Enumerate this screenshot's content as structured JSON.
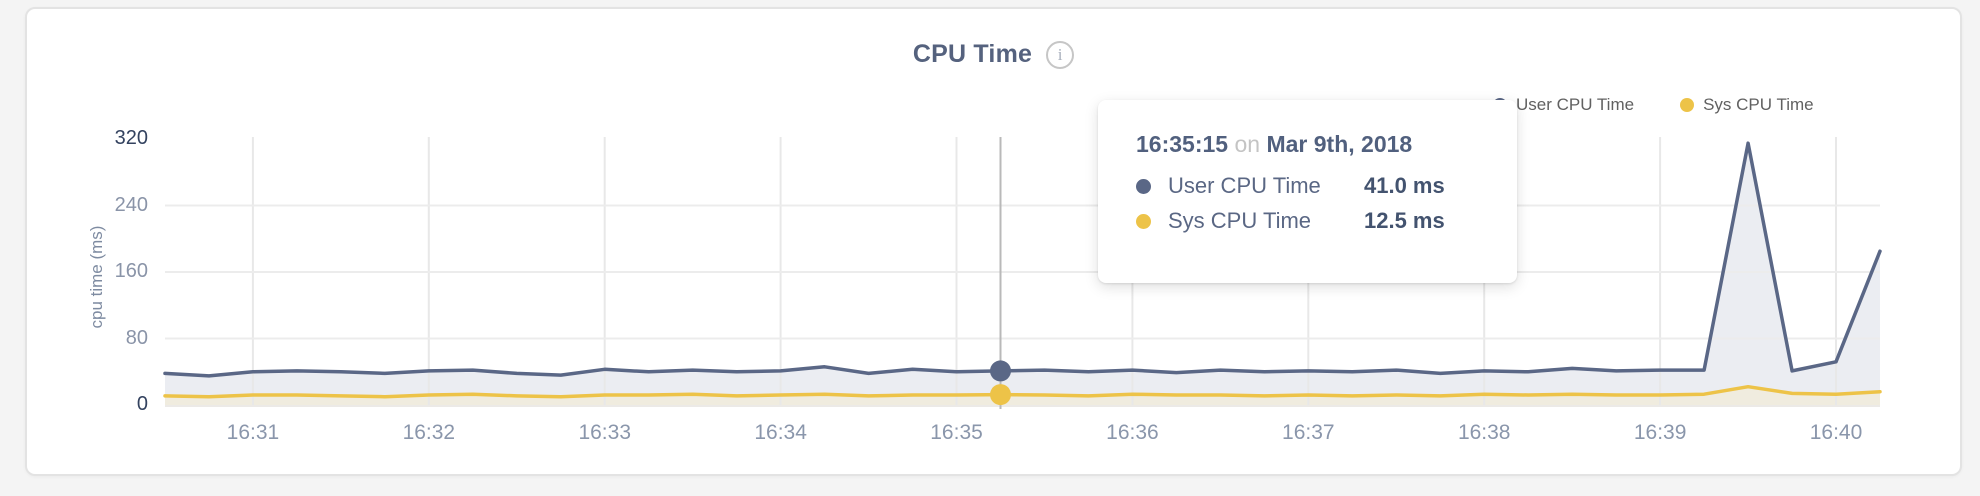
{
  "card": {
    "title": "CPU Time",
    "info_glyph": "i"
  },
  "legend": [
    {
      "label": "User CPU Time",
      "color": "#5a6786"
    },
    {
      "label": "Sys CPU Time",
      "color": "#edc348"
    }
  ],
  "tooltip": {
    "time": "16:35:15",
    "connector": "on",
    "date": "Mar 9th, 2018",
    "rows": [
      {
        "label": "User CPU Time",
        "value": "41.0 ms",
        "color": "#5a6786"
      },
      {
        "label": "Sys CPU Time",
        "value": "12.5 ms",
        "color": "#edc348"
      }
    ]
  },
  "chart_data": {
    "type": "area",
    "title": "CPU Time",
    "xlabel": "",
    "ylabel": "cpu time (ms)",
    "ylim": [
      0,
      320
    ],
    "yticks": [
      0,
      80,
      160,
      240,
      320
    ],
    "xticks": [
      "16:31",
      "16:32",
      "16:33",
      "16:34",
      "16:35",
      "16:36",
      "16:37",
      "16:38",
      "16:39",
      "16:40"
    ],
    "grid": true,
    "legend_position": "top-right",
    "start_time": "16:30:30",
    "interval_s": 15,
    "series": [
      {
        "name": "User CPU Time",
        "color": "#5a6786",
        "fill": "#ebedf2",
        "values": [
          38,
          35,
          40,
          41,
          40,
          38,
          41,
          42,
          38,
          36,
          43,
          40,
          42,
          40,
          41,
          46,
          38,
          43,
          40,
          41,
          42,
          40,
          42,
          39,
          42,
          40,
          41,
          40,
          42,
          38,
          41,
          40,
          44,
          41,
          42,
          42,
          315,
          41,
          52,
          185
        ]
      },
      {
        "name": "Sys CPU Time",
        "color": "#edc348",
        "fill": "#f0ecdf",
        "values": [
          11,
          10,
          12,
          12,
          11,
          10,
          12,
          13,
          11,
          10,
          12,
          12,
          13,
          11,
          12,
          13,
          11,
          12,
          12,
          12.5,
          12,
          11,
          13,
          12,
          12,
          11,
          12,
          11,
          12,
          11,
          13,
          12,
          13,
          12,
          12,
          13,
          22,
          14,
          13,
          16
        ]
      }
    ],
    "highlight": {
      "time": "16:35:15",
      "user_ms": 41.0,
      "sys_ms": 12.5
    }
  }
}
